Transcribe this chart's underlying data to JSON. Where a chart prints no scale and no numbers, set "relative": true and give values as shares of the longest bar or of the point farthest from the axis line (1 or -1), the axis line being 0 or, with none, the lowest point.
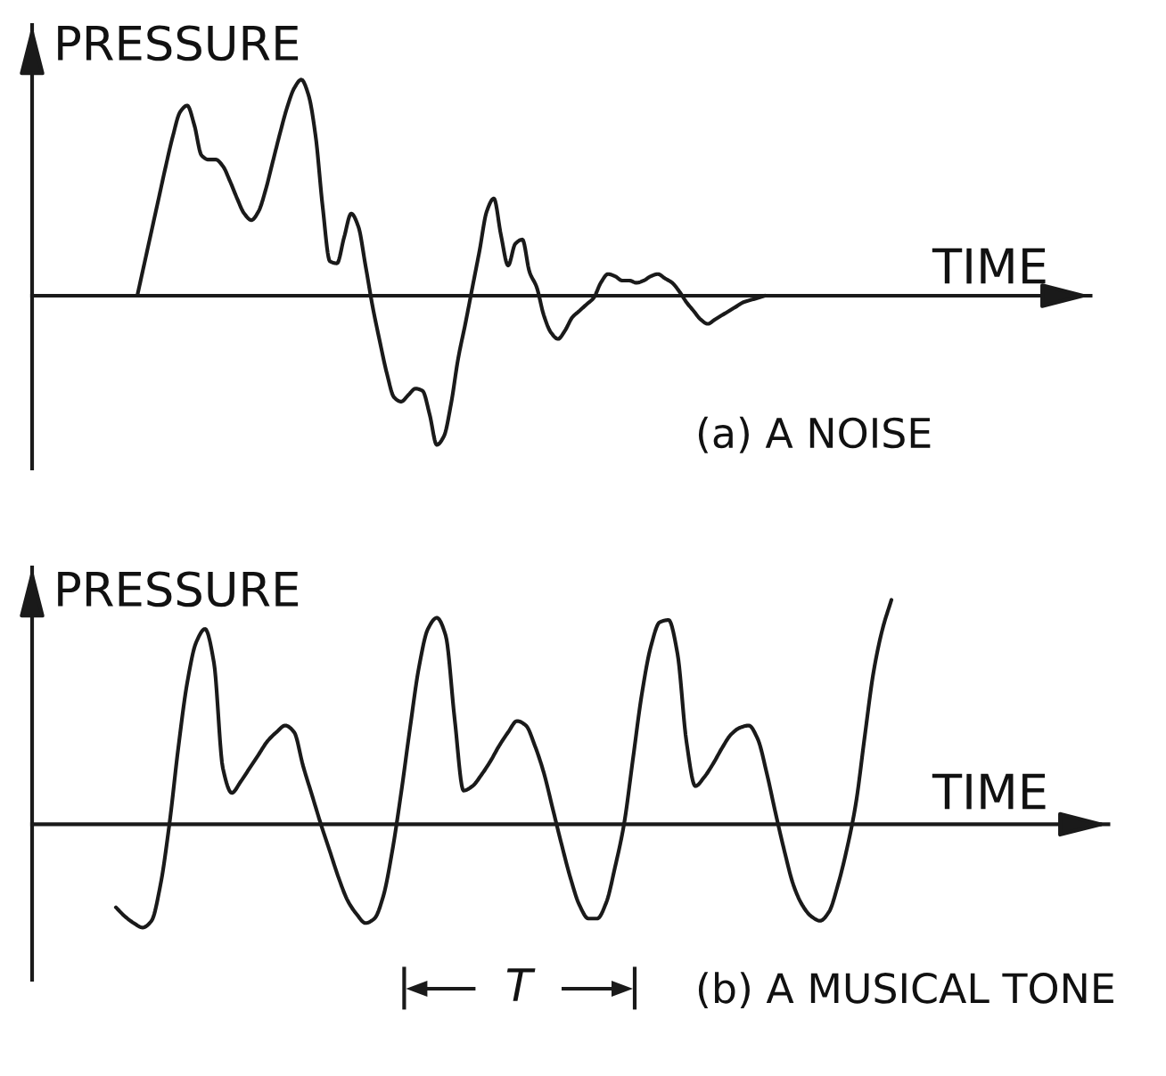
{
  "chart_data": [
    {
      "type": "line",
      "title": "(a) A NOISE",
      "xlabel": "TIME",
      "ylabel": "PRESSURE",
      "relative": true,
      "categories": [
        null,
        null,
        null,
        null,
        null,
        null,
        null,
        null,
        null,
        null,
        null,
        null,
        null,
        null,
        null,
        null,
        null,
        null,
        null,
        null,
        null,
        null,
        null,
        null,
        null,
        null,
        null,
        null,
        null,
        null,
        null,
        null,
        null,
        null,
        null,
        null,
        null,
        null,
        null,
        null,
        null,
        null,
        null,
        null,
        null,
        null,
        null,
        null,
        null,
        null,
        null,
        null,
        null,
        null,
        null,
        null,
        null,
        null,
        null,
        null,
        null,
        null,
        null,
        null,
        null,
        null,
        null,
        null,
        null,
        null,
        null,
        null,
        null,
        null,
        null,
        null,
        null,
        null,
        null,
        null,
        null,
        null,
        null,
        null,
        null,
        null,
        null,
        null,
        null
      ],
      "series": [
        {
          "color": "#1a1a1a",
          "values": [
            0,
            0.15,
            0.3,
            0.45,
            0.6,
            0.74,
            0.85,
            0.88,
            0.79,
            0.65,
            0.63,
            0.63,
            0.6,
            0.53,
            0.45,
            0.38,
            0.35,
            0.39,
            0.49,
            0.62,
            0.75,
            0.87,
            0.96,
            1,
            0.93,
            0.74,
            0.41,
            0.16,
            0.15,
            0.27,
            0.38,
            0.32,
            0.14,
            -0.05,
            -0.21,
            -0.36,
            -0.47,
            -0.49,
            -0.46,
            -0.43,
            -0.44,
            -0.55,
            -0.69,
            -0.65,
            -0.5,
            -0.29,
            -0.13,
            0.04,
            0.21,
            0.39,
            0.45,
            0.28,
            0.14,
            0.24,
            0.26,
            0.11,
            0.04,
            -0.09,
            -0.17,
            -0.2,
            -0.16,
            -0.1,
            -0.07,
            -0.04,
            -0.01,
            0.06,
            0.1,
            0.09,
            0.07,
            0.07,
            0.06,
            0.07,
            0.09,
            0.1,
            0.08,
            0.06,
            0.02,
            -0.03,
            -0.07,
            -0.11,
            -0.13,
            -0.11,
            -0.09,
            -0.07,
            -0.05,
            -0.03,
            -0.02,
            -0.01,
            0
          ]
        }
      ]
    },
    {
      "type": "line",
      "title": "(b) A MUSICAL TONE",
      "xlabel": "TIME",
      "ylabel": "PRESSURE",
      "relative": true,
      "annotations": [
        "T"
      ],
      "categories": [
        null,
        null,
        null,
        null,
        null,
        null,
        null,
        null,
        null,
        null,
        null,
        null,
        null,
        null,
        null,
        null,
        null,
        null,
        null,
        null,
        null,
        null,
        null,
        null,
        null,
        null,
        null,
        null,
        null,
        null,
        null,
        null,
        null,
        null,
        null,
        null,
        null,
        null,
        null,
        null,
        null,
        null,
        null,
        null,
        null,
        null,
        null,
        null,
        null,
        null,
        null,
        null,
        null,
        null,
        null,
        null,
        null,
        null,
        null,
        null,
        null,
        null,
        null,
        null,
        null,
        null,
        null,
        null,
        null,
        null,
        null,
        null,
        null,
        null,
        null,
        null,
        null,
        null,
        null,
        null,
        null,
        null,
        null,
        null,
        null,
        null,
        null,
        null
      ],
      "series": [
        {
          "color": "#1a1a1a",
          "values": [
            -0.37,
            -0.41,
            -0.44,
            -0.46,
            -0.43,
            -0.27,
            0.0,
            0.34,
            0.63,
            0.81,
            0.87,
            0.72,
            0.25,
            0.14,
            0.19,
            0.25,
            0.31,
            0.37,
            0.41,
            0.44,
            0.41,
            0.26,
            0.13,
            0.0,
            -0.12,
            -0.24,
            -0.34,
            -0.4,
            -0.44,
            -0.42,
            -0.32,
            -0.12,
            0.14,
            0.43,
            0.7,
            0.87,
            0.92,
            0.84,
            0.47,
            0.15,
            0.17,
            0.22,
            0.28,
            0.35,
            0.41,
            0.46,
            0.44,
            0.35,
            0.23,
            0.07,
            -0.09,
            -0.24,
            -0.36,
            -0.42,
            -0.42,
            -0.35,
            -0.19,
            0.0,
            0.29,
            0.58,
            0.79,
            0.9,
            0.91,
            0.76,
            0.37,
            0.17,
            0.21,
            0.27,
            0.34,
            0.4,
            0.43,
            0.44,
            0.38,
            0.23,
            0.05,
            -0.12,
            -0.27,
            -0.36,
            -0.41,
            -0.43,
            -0.39,
            -0.27,
            -0.11,
            0.09,
            0.39,
            0.68,
            0.87,
            1
          ]
        }
      ]
    }
  ]
}
